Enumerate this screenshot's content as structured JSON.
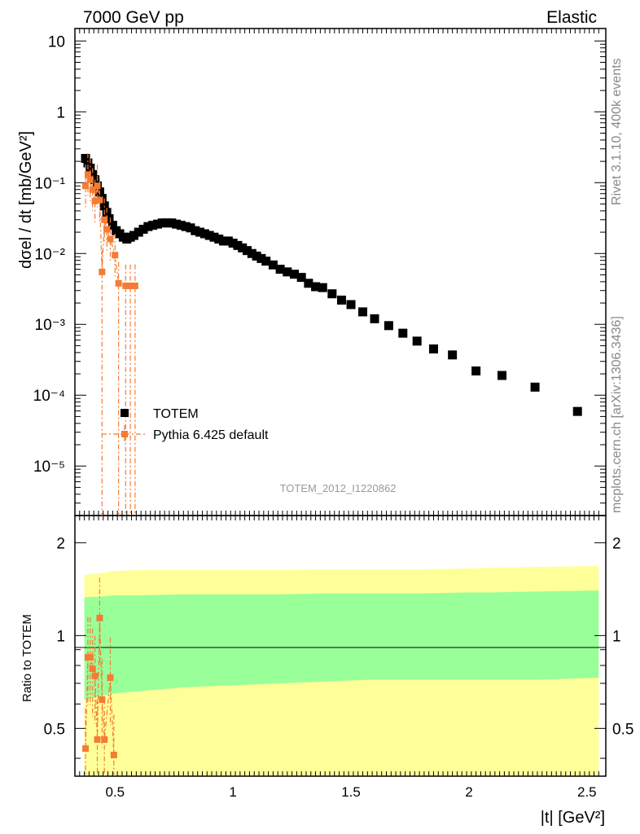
{
  "header": {
    "left_title": "7000 GeV pp",
    "right_title": "Elastic"
  },
  "side_texts": {
    "rivet": "Rivet 3.1.10,  400k events",
    "mcplots": "mcplots.cern.ch [arXiv:1306.3436]"
  },
  "analysis_label": "TOTEM_2012_I1220862",
  "legend": {
    "totem": "TOTEM",
    "pythia": "Pythia 6.425 default"
  },
  "colors": {
    "data": "#000000",
    "mc": "#f47c34",
    "band_outer": "#ffff99",
    "band_inner": "#99ff99"
  },
  "chart_data": [
    {
      "type": "scatter",
      "name": "main",
      "title": "",
      "xlabel": "|t| [GeV²]",
      "ylabel": "dσel / dt [mb/GeV²]",
      "yscale": "log",
      "xlim": [
        0.33,
        2.58
      ],
      "ylim": [
        2e-06,
        15
      ],
      "x_ticks": [
        "0.5",
        "1",
        "1.5",
        "2",
        "2.5"
      ],
      "y_ticks": [
        "10",
        "1",
        "10⁻¹",
        "10⁻²",
        "10⁻³",
        "10⁻⁴",
        "10⁻⁵"
      ],
      "legend_position": "lower-left",
      "series": [
        {
          "name": "TOTEM",
          "x": [
            0.375,
            0.385,
            0.395,
            0.405,
            0.415,
            0.425,
            0.435,
            0.445,
            0.455,
            0.465,
            0.475,
            0.49,
            0.505,
            0.52,
            0.535,
            0.55,
            0.565,
            0.58,
            0.6,
            0.62,
            0.64,
            0.66,
            0.68,
            0.7,
            0.72,
            0.74,
            0.76,
            0.78,
            0.8,
            0.82,
            0.84,
            0.86,
            0.88,
            0.9,
            0.92,
            0.94,
            0.96,
            0.98,
            1.0,
            1.02,
            1.04,
            1.06,
            1.08,
            1.1,
            1.12,
            1.14,
            1.17,
            1.2,
            1.23,
            1.26,
            1.29,
            1.32,
            1.35,
            1.38,
            1.42,
            1.46,
            1.5,
            1.55,
            1.6,
            1.66,
            1.72,
            1.78,
            1.85,
            1.93,
            2.03,
            2.14,
            2.28,
            2.46
          ],
          "y": [
            0.22,
            0.19,
            0.16,
            0.13,
            0.11,
            0.09,
            0.074,
            0.06,
            0.047,
            0.038,
            0.031,
            0.025,
            0.021,
            0.019,
            0.017,
            0.016,
            0.017,
            0.018,
            0.02,
            0.022,
            0.024,
            0.025,
            0.026,
            0.027,
            0.027,
            0.027,
            0.026,
            0.025,
            0.024,
            0.023,
            0.021,
            0.02,
            0.019,
            0.018,
            0.017,
            0.016,
            0.015,
            0.015,
            0.014,
            0.013,
            0.012,
            0.011,
            0.01,
            0.0092,
            0.0085,
            0.0078,
            0.0069,
            0.006,
            0.0055,
            0.0051,
            0.0046,
            0.0038,
            0.0034,
            0.0033,
            0.0027,
            0.0022,
            0.0019,
            0.0015,
            0.0012,
            0.00096,
            0.00075,
            0.00058,
            0.00045,
            0.00037,
            0.00022,
            0.00019,
            0.00013,
            5.9e-05
          ]
        },
        {
          "name": "Pythia 6.425 default",
          "x": [
            0.375,
            0.385,
            0.395,
            0.405,
            0.415,
            0.425,
            0.435,
            0.445,
            0.455,
            0.465,
            0.48,
            0.5,
            0.515,
            0.545,
            0.565,
            0.585
          ],
          "y": [
            0.09,
            0.13,
            0.11,
            0.08,
            0.055,
            0.09,
            0.057,
            0.0055,
            0.03,
            0.022,
            0.016,
            0.0095,
            0.0038,
            0.0035,
            0.0035,
            0.0035
          ]
        }
      ]
    },
    {
      "type": "scatter",
      "name": "ratio",
      "title": "",
      "xlabel": "|t| [GeV²]",
      "ylabel": "Ratio to TOTEM",
      "yscale": "log",
      "xlim": [
        0.33,
        2.58
      ],
      "ylim": [
        0.35,
        2.45
      ],
      "y_ticks": [
        "2",
        "1",
        "0.5"
      ],
      "reference_line": 1,
      "bands": {
        "x": [
          0.37,
          0.45,
          0.5,
          0.6,
          0.8,
          1.0,
          1.2,
          1.4,
          1.6,
          1.8,
          2.0,
          2.1,
          2.3,
          2.55
        ],
        "outer_low": [
          0.35,
          0.35,
          0.35,
          0.35,
          0.35,
          0.35,
          0.35,
          0.35,
          0.35,
          0.35,
          0.35,
          0.35,
          0.35,
          0.35
        ],
        "outer_high": [
          1.57,
          1.6,
          1.62,
          1.63,
          1.63,
          1.63,
          1.63,
          1.64,
          1.64,
          1.64,
          1.65,
          1.66,
          1.67,
          1.68
        ],
        "inner_low": [
          0.62,
          0.64,
          0.65,
          0.66,
          0.68,
          0.69,
          0.7,
          0.71,
          0.72,
          0.72,
          0.72,
          0.72,
          0.72,
          0.73
        ],
        "inner_high": [
          1.33,
          1.34,
          1.35,
          1.35,
          1.36,
          1.36,
          1.36,
          1.37,
          1.37,
          1.37,
          1.38,
          1.38,
          1.39,
          1.4
        ]
      },
      "series": [
        {
          "name": "Pythia 6.425 default",
          "x": [
            0.375,
            0.385,
            0.395,
            0.405,
            0.415,
            0.425,
            0.435,
            0.445,
            0.455,
            0.48,
            0.495
          ],
          "y": [
            0.43,
            0.85,
            0.85,
            0.78,
            0.74,
            0.46,
            1.14,
            0.62,
            0.46,
            0.73,
            0.41
          ]
        }
      ]
    }
  ]
}
